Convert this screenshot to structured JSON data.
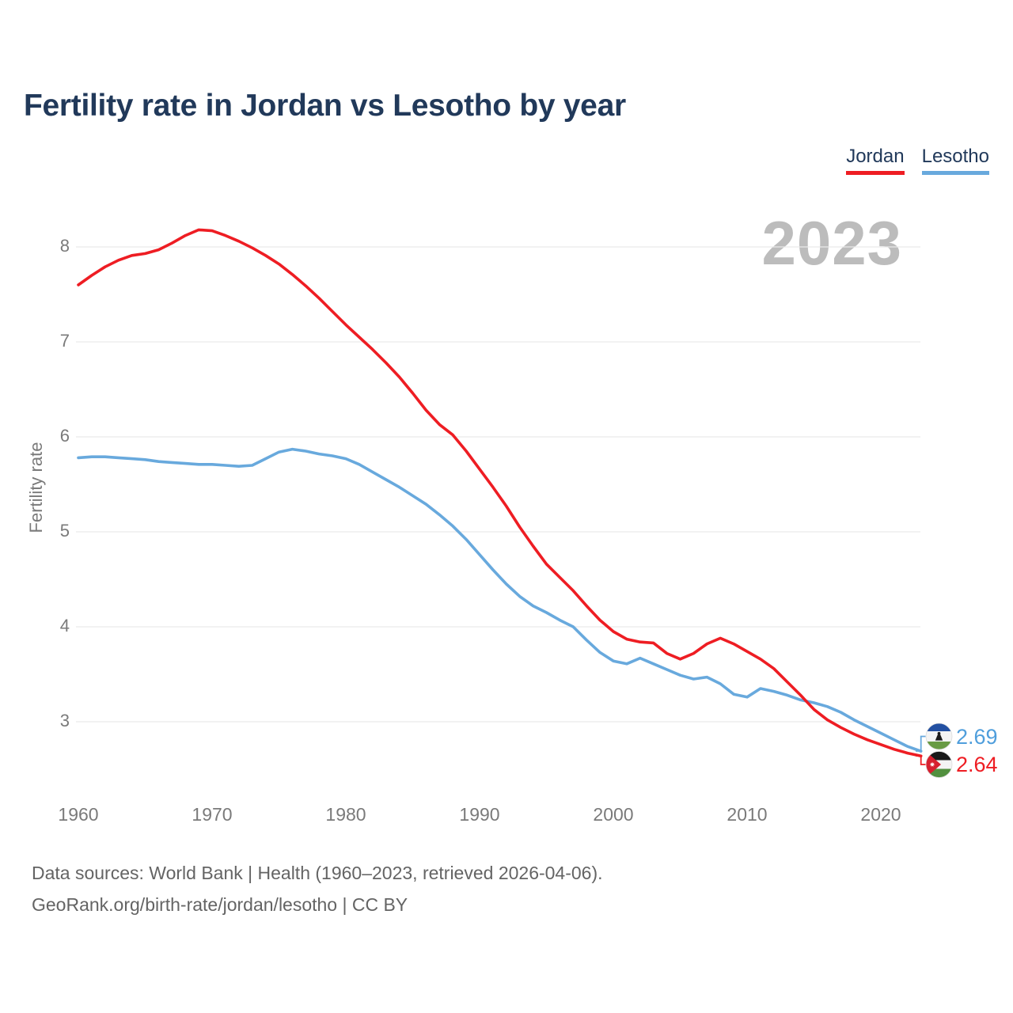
{
  "title": "Fertility rate in Jordan vs Lesotho by year",
  "watermark": "2023",
  "legend": [
    {
      "label": "Jordan",
      "color": "#ee1d23"
    },
    {
      "label": "Lesotho",
      "color": "#68a9dd"
    }
  ],
  "y_axis": {
    "label": "Fertility rate",
    "ticks": [
      8,
      7,
      6,
      5,
      4,
      3
    ]
  },
  "x_axis": {
    "ticks": [
      1960,
      1970,
      1980,
      1990,
      2000,
      2010,
      2020
    ]
  },
  "end_labels": [
    {
      "country": "Lesotho",
      "value": "2.69",
      "color": "#4f9edc"
    },
    {
      "country": "Jordan",
      "value": "2.64",
      "color": "#ee1d23"
    }
  ],
  "footer": {
    "line1": "Data sources: World Bank | Health (1960–2023, retrieved 2026-04-06).",
    "line2": "GeoRank.org/birth-rate/jordan/lesotho | CC BY"
  },
  "chart_data": {
    "type": "line",
    "title": "Fertility rate in Jordan vs Lesotho by year",
    "xlabel": "",
    "ylabel": "Fertility rate",
    "xlim": [
      1960,
      2023
    ],
    "ylim": [
      2.5,
      8.5
    ],
    "yticks": [
      3,
      4,
      5,
      6,
      7,
      8
    ],
    "xticks": [
      1960,
      1970,
      1980,
      1990,
      2000,
      2010,
      2020
    ],
    "grid": "horizontal",
    "legend_position": "top-right",
    "watermark_year": "2023",
    "x": [
      1960,
      1961,
      1962,
      1963,
      1964,
      1965,
      1966,
      1967,
      1968,
      1969,
      1970,
      1971,
      1972,
      1973,
      1974,
      1975,
      1976,
      1977,
      1978,
      1979,
      1980,
      1981,
      1982,
      1983,
      1984,
      1985,
      1986,
      1987,
      1988,
      1989,
      1990,
      1991,
      1992,
      1993,
      1994,
      1995,
      1996,
      1997,
      1998,
      1999,
      2000,
      2001,
      2002,
      2003,
      2004,
      2005,
      2006,
      2007,
      2008,
      2009,
      2010,
      2011,
      2012,
      2013,
      2014,
      2015,
      2016,
      2017,
      2018,
      2019,
      2020,
      2021,
      2022,
      2023
    ],
    "series": [
      {
        "name": "Lesotho",
        "color": "#68a9dd",
        "end_value": 2.69,
        "values": [
          5.78,
          5.79,
          5.79,
          5.78,
          5.77,
          5.76,
          5.74,
          5.73,
          5.72,
          5.71,
          5.71,
          5.7,
          5.69,
          5.7,
          5.77,
          5.84,
          5.87,
          5.85,
          5.82,
          5.8,
          5.77,
          5.71,
          5.63,
          5.55,
          5.47,
          5.38,
          5.29,
          5.18,
          5.06,
          4.92,
          4.76,
          4.6,
          4.45,
          4.32,
          4.22,
          4.15,
          4.07,
          4.0,
          3.86,
          3.73,
          3.64,
          3.61,
          3.67,
          3.61,
          3.55,
          3.49,
          3.45,
          3.47,
          3.4,
          3.29,
          3.26,
          3.35,
          3.32,
          3.28,
          3.23,
          3.2,
          3.16,
          3.1,
          3.02,
          2.95,
          2.88,
          2.81,
          2.74,
          2.69
        ]
      },
      {
        "name": "Jordan",
        "color": "#ee1d23",
        "end_value": 2.64,
        "values": [
          7.6,
          7.7,
          7.79,
          7.86,
          7.91,
          7.93,
          7.97,
          8.04,
          8.12,
          8.18,
          8.17,
          8.12,
          8.06,
          7.99,
          7.91,
          7.82,
          7.71,
          7.59,
          7.46,
          7.32,
          7.18,
          7.05,
          6.92,
          6.78,
          6.63,
          6.46,
          6.28,
          6.13,
          6.02,
          5.85,
          5.66,
          5.47,
          5.27,
          5.05,
          4.85,
          4.66,
          4.52,
          4.38,
          4.22,
          4.07,
          3.95,
          3.87,
          3.84,
          3.83,
          3.72,
          3.66,
          3.72,
          3.82,
          3.88,
          3.82,
          3.74,
          3.66,
          3.56,
          3.42,
          3.28,
          3.13,
          3.02,
          2.94,
          2.87,
          2.81,
          2.76,
          2.71,
          2.67,
          2.64
        ]
      }
    ]
  }
}
